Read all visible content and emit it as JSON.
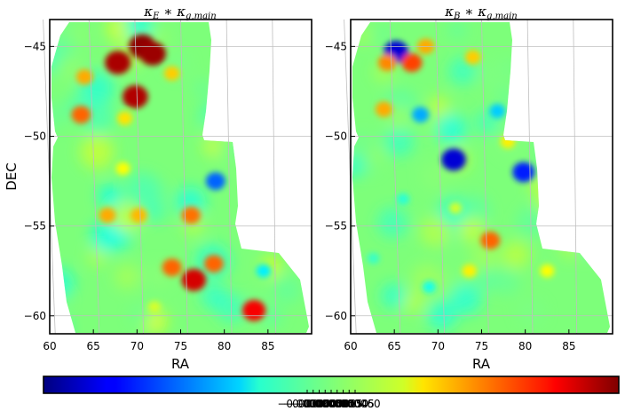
{
  "chart_data": [
    {
      "type": "heatmap",
      "title": {
        "kappa1": "κ",
        "sub1": "E",
        "op": " ∗ ",
        "kappa2": "κ",
        "sub2": "g,main"
      },
      "xlabel": "RA",
      "ylabel": "DEC",
      "xlim": [
        60,
        90
      ],
      "ylim": [
        -61,
        -43.5
      ],
      "xticks": [
        60,
        65,
        70,
        75,
        80,
        85
      ],
      "yticks": [
        -45,
        -50,
        -55,
        -60
      ],
      "grid": true,
      "features": [
        {
          "ra": 70.6,
          "dec": -45.0,
          "value": 0.0007
        },
        {
          "ra": 71.8,
          "dec": -45.4,
          "value": 0.00068
        },
        {
          "ra": 67.8,
          "dec": -45.9,
          "value": 0.00066
        },
        {
          "ra": 69.8,
          "dec": -47.8,
          "value": 0.00065
        },
        {
          "ra": 76.5,
          "dec": -58.0,
          "value": 0.0006
        },
        {
          "ra": 83.4,
          "dec": -59.7,
          "value": 0.00055
        },
        {
          "ra": 74.0,
          "dec": -57.3,
          "value": 0.0004
        },
        {
          "ra": 76.2,
          "dec": -54.4,
          "value": 0.00038
        },
        {
          "ra": 63.6,
          "dec": -48.8,
          "value": 0.0004
        },
        {
          "ra": 64.0,
          "dec": -46.7,
          "value": 0.0003
        },
        {
          "ra": 66.6,
          "dec": -54.4,
          "value": 0.0003
        },
        {
          "ra": 70.2,
          "dec": -54.4,
          "value": 0.00028
        },
        {
          "ra": 74.0,
          "dec": -46.5,
          "value": 0.00025
        },
        {
          "ra": 68.6,
          "dec": -49.0,
          "value": 0.00022
        },
        {
          "ra": 78.8,
          "dec": -57.1,
          "value": 0.0004
        },
        {
          "ra": 79.0,
          "dec": -52.5,
          "value": -0.0004
        },
        {
          "ra": 68.4,
          "dec": -51.8,
          "value": 0.00018
        },
        {
          "ra": 84.5,
          "dec": -57.5,
          "value": -0.0002
        },
        {
          "ra": 72.0,
          "dec": -59.5,
          "value": 0.00012
        }
      ]
    },
    {
      "type": "heatmap",
      "title": {
        "kappa1": "κ",
        "sub1": "B",
        "op": " ∗ ",
        "kappa2": "κ",
        "sub2": "g,main"
      },
      "xlabel": "RA",
      "ylabel": "",
      "xlim": [
        60,
        90
      ],
      "ylim": [
        -61,
        -43.5
      ],
      "xticks": [
        60,
        65,
        70,
        75,
        80,
        85
      ],
      "yticks": [
        -45,
        -50,
        -55,
        -60
      ],
      "grid": true,
      "features": [
        {
          "ra": 65.2,
          "dec": -45.3,
          "value": -0.0006
        },
        {
          "ra": 67.0,
          "dec": -45.9,
          "value": 0.00045
        },
        {
          "ra": 64.2,
          "dec": -45.9,
          "value": 0.00035
        },
        {
          "ra": 68.6,
          "dec": -45.0,
          "value": 0.0003
        },
        {
          "ra": 71.8,
          "dec": -51.3,
          "value": -0.0006
        },
        {
          "ra": 79.8,
          "dec": -52.0,
          "value": -0.0005
        },
        {
          "ra": 68.0,
          "dec": -48.8,
          "value": -0.0003
        },
        {
          "ra": 76.0,
          "dec": -55.8,
          "value": 0.0004
        },
        {
          "ra": 63.8,
          "dec": -48.5,
          "value": 0.0003
        },
        {
          "ra": 74.0,
          "dec": -45.6,
          "value": 0.00025
        },
        {
          "ra": 76.8,
          "dec": -48.6,
          "value": -0.00025
        },
        {
          "ra": 73.6,
          "dec": -57.5,
          "value": 0.0002
        },
        {
          "ra": 69.0,
          "dec": -58.4,
          "value": -0.00015
        },
        {
          "ra": 82.5,
          "dec": -57.5,
          "value": 0.00018
        },
        {
          "ra": 66.0,
          "dec": -53.5,
          "value": -0.00012
        },
        {
          "ra": 78.0,
          "dec": -50.3,
          "value": 0.0002
        },
        {
          "ra": 72.0,
          "dec": -54.0,
          "value": 0.00012
        },
        {
          "ra": 62.6,
          "dec": -56.8,
          "value": -0.0001
        }
      ]
    }
  ],
  "colorbar": {
    "colormap": "jet",
    "vmin": -0.00072,
    "vmax": 0.00072,
    "ticks": [
      -6e-05,
      -4.5e-05,
      -3e-05,
      -1.5e-05,
      0.0,
      1.5e-05,
      3e-05,
      4.5e-05,
      6e-05
    ],
    "tick_labels": [
      "−0.000060",
      "−0.000045",
      "−0.000030",
      "−0.000015",
      "0.000000",
      "0.000015",
      "0.000030",
      "0.000045",
      "0.000060"
    ]
  },
  "colors": {
    "background": "#ffffff",
    "grid": "#bfbfbf",
    "frame": "#000000"
  }
}
